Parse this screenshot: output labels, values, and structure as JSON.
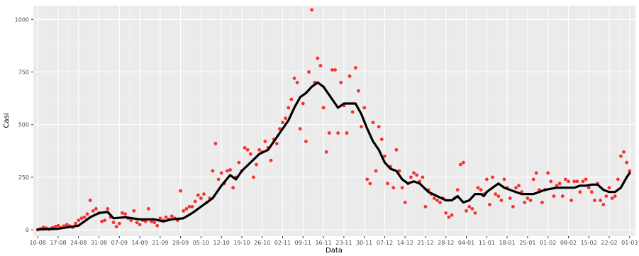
{
  "chart_data": {
    "type": "scatter",
    "xlabel": "Data",
    "ylabel": "Casi",
    "grid": true,
    "y_ticks": [
      0,
      250,
      500,
      750,
      1000
    ],
    "ylim": [
      -30,
      1065
    ],
    "x_ticks": [
      "10-08",
      "17-08",
      "24-08",
      "31-08",
      "07-09",
      "14-09",
      "21-09",
      "28-09",
      "05-10",
      "12-10",
      "19-10",
      "26-10",
      "02-11",
      "09-11",
      "16-11",
      "23-11",
      "30-11",
      "07-12",
      "14-12",
      "21-12",
      "28-12",
      "04-01",
      "11-01",
      "18-01",
      "25-01",
      "01-02",
      "08-02",
      "15-02",
      "22-02",
      "01-03"
    ],
    "x_tick_day_index": [
      0,
      7,
      14,
      21,
      28,
      35,
      42,
      49,
      56,
      63,
      70,
      77,
      84,
      91,
      98,
      105,
      112,
      119,
      126,
      133,
      140,
      147,
      154,
      161,
      168,
      175,
      182,
      189,
      196,
      203
    ],
    "xlim_day_index": [
      -1.5,
      205
    ],
    "series": [
      {
        "kind": "points",
        "color": "#f8312f",
        "points": [
          [
            0,
            0
          ],
          [
            1,
            5
          ],
          [
            2,
            12
          ],
          [
            3,
            8
          ],
          [
            4,
            3
          ],
          [
            5,
            10
          ],
          [
            6,
            15
          ],
          [
            7,
            20
          ],
          [
            8,
            10
          ],
          [
            9,
            18
          ],
          [
            10,
            25
          ],
          [
            11,
            18
          ],
          [
            12,
            12
          ],
          [
            13,
            30
          ],
          [
            14,
            45
          ],
          [
            15,
            55
          ],
          [
            16,
            60
          ],
          [
            17,
            75
          ],
          [
            18,
            140
          ],
          [
            19,
            90
          ],
          [
            20,
            100
          ],
          [
            21,
            80
          ],
          [
            22,
            40
          ],
          [
            23,
            45
          ],
          [
            24,
            100
          ],
          [
            25,
            60
          ],
          [
            26,
            35
          ],
          [
            27,
            15
          ],
          [
            28,
            30
          ],
          [
            29,
            80
          ],
          [
            30,
            75
          ],
          [
            31,
            55
          ],
          [
            32,
            45
          ],
          [
            33,
            90
          ],
          [
            34,
            35
          ],
          [
            35,
            25
          ],
          [
            36,
            45
          ],
          [
            37,
            40
          ],
          [
            38,
            100
          ],
          [
            39,
            40
          ],
          [
            40,
            35
          ],
          [
            41,
            20
          ],
          [
            42,
            55
          ],
          [
            43,
            45
          ],
          [
            44,
            60
          ],
          [
            45,
            50
          ],
          [
            46,
            65
          ],
          [
            47,
            55
          ],
          [
            48,
            45
          ],
          [
            49,
            185
          ],
          [
            50,
            90
          ],
          [
            51,
            100
          ],
          [
            52,
            110
          ],
          [
            53,
            110
          ],
          [
            54,
            135
          ],
          [
            55,
            165
          ],
          [
            56,
            150
          ],
          [
            57,
            170
          ],
          [
            58,
            130
          ],
          [
            59,
            150
          ],
          [
            60,
            280
          ],
          [
            61,
            410
          ],
          [
            62,
            240
          ],
          [
            63,
            270
          ],
          [
            64,
            220
          ],
          [
            65,
            280
          ],
          [
            66,
            285
          ],
          [
            67,
            200
          ],
          [
            68,
            250
          ],
          [
            69,
            320
          ],
          [
            70,
            280
          ],
          [
            71,
            390
          ],
          [
            72,
            380
          ],
          [
            73,
            360
          ],
          [
            74,
            250
          ],
          [
            75,
            310
          ],
          [
            76,
            380
          ],
          [
            77,
            370
          ],
          [
            78,
            420
          ],
          [
            79,
            390
          ],
          [
            80,
            330
          ],
          [
            81,
            430
          ],
          [
            82,
            410
          ],
          [
            83,
            480
          ],
          [
            84,
            510
          ],
          [
            85,
            530
          ],
          [
            86,
            580
          ],
          [
            87,
            620
          ],
          [
            88,
            720
          ],
          [
            89,
            700
          ],
          [
            90,
            480
          ],
          [
            91,
            600
          ],
          [
            92,
            420
          ],
          [
            93,
            750
          ],
          [
            94,
            1045
          ],
          [
            95,
            700
          ],
          [
            96,
            815
          ],
          [
            97,
            780
          ],
          [
            98,
            580
          ],
          [
            99,
            370
          ],
          [
            100,
            460
          ],
          [
            101,
            760
          ],
          [
            102,
            760
          ],
          [
            103,
            460
          ],
          [
            104,
            700
          ],
          [
            105,
            590
          ],
          [
            106,
            460
          ],
          [
            107,
            730
          ],
          [
            108,
            560
          ],
          [
            109,
            770
          ],
          [
            110,
            660
          ],
          [
            111,
            490
          ],
          [
            112,
            580
          ],
          [
            113,
            240
          ],
          [
            114,
            220
          ],
          [
            115,
            510
          ],
          [
            116,
            280
          ],
          [
            117,
            490
          ],
          [
            118,
            430
          ],
          [
            119,
            350
          ],
          [
            120,
            220
          ],
          [
            121,
            300
          ],
          [
            122,
            200
          ],
          [
            123,
            380
          ],
          [
            124,
            280
          ],
          [
            125,
            200
          ],
          [
            126,
            130
          ],
          [
            127,
            220
          ],
          [
            128,
            250
          ],
          [
            129,
            270
          ],
          [
            130,
            260
          ],
          [
            131,
            230
          ],
          [
            132,
            250
          ],
          [
            133,
            110
          ],
          [
            134,
            190
          ],
          [
            135,
            170
          ],
          [
            136,
            150
          ],
          [
            137,
            140
          ],
          [
            138,
            130
          ],
          [
            139,
            150
          ],
          [
            140,
            80
          ],
          [
            141,
            60
          ],
          [
            142,
            70
          ],
          [
            143,
            150
          ],
          [
            144,
            190
          ],
          [
            145,
            310
          ],
          [
            146,
            320
          ],
          [
            147,
            90
          ],
          [
            148,
            110
          ],
          [
            149,
            100
          ],
          [
            150,
            80
          ],
          [
            151,
            200
          ],
          [
            152,
            190
          ],
          [
            153,
            170
          ],
          [
            154,
            240
          ],
          [
            155,
            120
          ],
          [
            156,
            250
          ],
          [
            157,
            170
          ],
          [
            158,
            160
          ],
          [
            159,
            140
          ],
          [
            160,
            240
          ],
          [
            161,
            200
          ],
          [
            162,
            150
          ],
          [
            163,
            110
          ],
          [
            164,
            200
          ],
          [
            165,
            210
          ],
          [
            166,
            180
          ],
          [
            167,
            130
          ],
          [
            168,
            150
          ],
          [
            169,
            140
          ],
          [
            170,
            240
          ],
          [
            171,
            270
          ],
          [
            172,
            190
          ],
          [
            173,
            130
          ],
          [
            174,
            190
          ],
          [
            175,
            270
          ],
          [
            176,
            230
          ],
          [
            177,
            160
          ],
          [
            178,
            210
          ],
          [
            179,
            220
          ],
          [
            180,
            160
          ],
          [
            181,
            240
          ],
          [
            182,
            230
          ],
          [
            183,
            140
          ],
          [
            184,
            230
          ],
          [
            185,
            230
          ],
          [
            186,
            180
          ],
          [
            187,
            230
          ],
          [
            188,
            240
          ],
          [
            189,
            200
          ],
          [
            190,
            180
          ],
          [
            191,
            140
          ],
          [
            192,
            220
          ],
          [
            193,
            140
          ],
          [
            194,
            120
          ],
          [
            195,
            160
          ],
          [
            196,
            200
          ],
          [
            197,
            150
          ],
          [
            198,
            160
          ],
          [
            199,
            240
          ],
          [
            200,
            350
          ],
          [
            201,
            370
          ],
          [
            202,
            320
          ],
          [
            203,
            280
          ]
        ]
      },
      {
        "kind": "line",
        "color": "#000000",
        "points": [
          [
            0,
            2
          ],
          [
            7,
            5
          ],
          [
            14,
            20
          ],
          [
            18,
            60
          ],
          [
            21,
            80
          ],
          [
            24,
            85
          ],
          [
            26,
            55
          ],
          [
            30,
            60
          ],
          [
            35,
            50
          ],
          [
            40,
            50
          ],
          [
            43,
            40
          ],
          [
            46,
            50
          ],
          [
            50,
            55
          ],
          [
            53,
            80
          ],
          [
            56,
            110
          ],
          [
            58,
            130
          ],
          [
            60,
            150
          ],
          [
            63,
            210
          ],
          [
            66,
            260
          ],
          [
            68,
            240
          ],
          [
            70,
            280
          ],
          [
            73,
            320
          ],
          [
            76,
            360
          ],
          [
            79,
            380
          ],
          [
            82,
            440
          ],
          [
            84,
            480
          ],
          [
            86,
            520
          ],
          [
            88,
            580
          ],
          [
            90,
            630
          ],
          [
            92,
            650
          ],
          [
            94,
            680
          ],
          [
            96,
            700
          ],
          [
            98,
            680
          ],
          [
            100,
            640
          ],
          [
            102,
            600
          ],
          [
            103,
            580
          ],
          [
            105,
            600
          ],
          [
            109,
            600
          ],
          [
            111,
            550
          ],
          [
            113,
            480
          ],
          [
            115,
            420
          ],
          [
            117,
            380
          ],
          [
            119,
            320
          ],
          [
            121,
            290
          ],
          [
            123,
            280
          ],
          [
            125,
            240
          ],
          [
            127,
            220
          ],
          [
            129,
            230
          ],
          [
            131,
            220
          ],
          [
            134,
            180
          ],
          [
            137,
            160
          ],
          [
            140,
            140
          ],
          [
            142,
            140
          ],
          [
            144,
            160
          ],
          [
            146,
            130
          ],
          [
            148,
            140
          ],
          [
            150,
            170
          ],
          [
            152,
            170
          ],
          [
            153,
            160
          ],
          [
            154,
            180
          ],
          [
            156,
            200
          ],
          [
            158,
            220
          ],
          [
            160,
            200
          ],
          [
            162,
            190
          ],
          [
            164,
            180
          ],
          [
            166,
            170
          ],
          [
            168,
            170
          ],
          [
            170,
            170
          ],
          [
            172,
            180
          ],
          [
            174,
            190
          ],
          [
            176,
            195
          ],
          [
            178,
            200
          ],
          [
            180,
            200
          ],
          [
            182,
            200
          ],
          [
            184,
            200
          ],
          [
            186,
            210
          ],
          [
            188,
            210
          ],
          [
            190,
            215
          ],
          [
            192,
            215
          ],
          [
            194,
            190
          ],
          [
            196,
            180
          ],
          [
            198,
            180
          ],
          [
            200,
            200
          ],
          [
            202,
            250
          ],
          [
            203,
            270
          ]
        ]
      }
    ]
  }
}
